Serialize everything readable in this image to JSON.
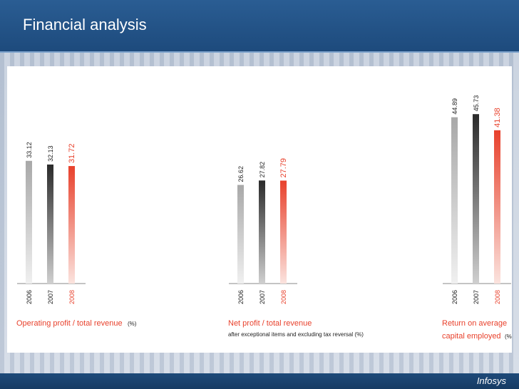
{
  "header": {
    "title": "Financial analysis"
  },
  "footer": {
    "logo": "Infosys"
  },
  "colors": {
    "bar_2006": "#b9b9b9",
    "bar_2007": "#3a3a3a",
    "bar_2008": "#e8412c",
    "label_red": "#e8412c"
  },
  "chart_data": [
    {
      "type": "bar",
      "categories": [
        "2006",
        "2007",
        "2008"
      ],
      "values": [
        33.12,
        32.13,
        31.72
      ],
      "value_labels": [
        "33.12",
        "32.13",
        "31.72"
      ],
      "title": "Operating profit / total revenue",
      "unit": "(%)",
      "subtitle": ""
    },
    {
      "type": "bar",
      "categories": [
        "2006",
        "2007",
        "2008"
      ],
      "values": [
        26.62,
        27.82,
        27.79
      ],
      "value_labels": [
        "26.62",
        "27.82",
        "27.79"
      ],
      "title": "Net profit / total revenue",
      "unit": "",
      "subtitle": "after exceptional items and excluding tax reversal (%)"
    },
    {
      "type": "bar",
      "categories": [
        "2006",
        "2007",
        "2008"
      ],
      "values": [
        44.89,
        45.73,
        41.38
      ],
      "value_labels": [
        "44.89",
        "45.73",
        "41.38"
      ],
      "title": "Return on average",
      "title_line2": "capital employed",
      "unit": "(%)",
      "subtitle": ""
    }
  ]
}
